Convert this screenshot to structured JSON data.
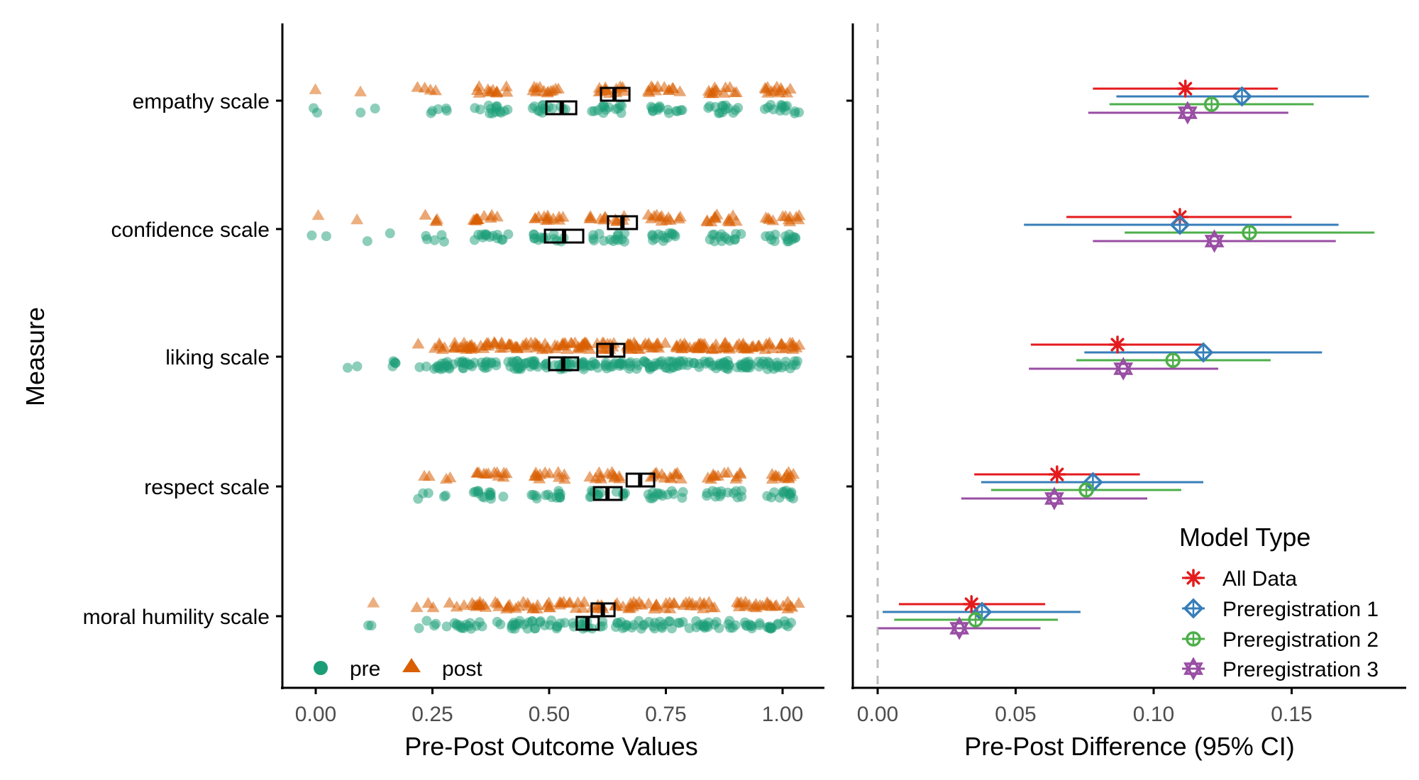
{
  "colors": {
    "pre": "#1b9e77",
    "post": "#d95f02",
    "all_data": "#e41a1c",
    "prereg1": "#377eb8",
    "prereg2": "#4daf4a",
    "prereg3": "#984ea3",
    "zero_line": "#bdbdbd"
  },
  "chart_data": [
    {
      "type": "scatter",
      "title": "",
      "xlabel": "Pre-Post Outcome Values",
      "ylabel": "Measure",
      "xlim": [
        -0.06,
        1.09
      ],
      "xticks": [
        "0.00",
        "0.25",
        "0.50",
        "0.75",
        "1.00"
      ],
      "xtick_values": [
        0,
        0.25,
        0.5,
        0.75,
        1.0
      ],
      "categories": [
        "empathy scale",
        "confidence scale",
        "liking scale",
        "respect scale",
        "moral humility scale"
      ],
      "legend": {
        "position": "bottom-left",
        "entries": [
          {
            "label": "pre",
            "shape": "circle"
          },
          {
            "label": "post",
            "shape": "triangle"
          }
        ]
      },
      "series": [
        {
          "name": "pre",
          "clusters": [
            [
              0.0,
              0.125,
              0.25,
              0.375,
              0.5,
              0.625,
              0.75,
              0.875,
              1.0
            ],
            [
              0.0,
              0.125,
              0.25,
              0.375,
              0.5,
              0.625,
              0.75,
              0.875,
              1.0
            ],
            [
              0.1,
              0.15,
              0.2,
              0.25,
              0.3,
              0.35,
              0.4,
              0.45,
              0.5,
              0.55,
              0.6,
              0.65,
              0.7,
              0.75,
              0.8,
              0.85,
              0.9,
              0.95,
              1.0
            ],
            [
              0.25,
              0.375,
              0.5,
              0.625,
              0.75,
              0.875,
              1.0
            ],
            [
              0.14,
              0.25,
              0.33,
              0.42,
              0.5,
              0.58,
              0.67,
              0.75,
              0.83,
              0.92,
              1.0
            ]
          ],
          "means": [
            0.527,
            0.532,
            0.53,
            0.625,
            0.582
          ],
          "ci_low": [
            0.494,
            0.491,
            0.5,
            0.596,
            0.559
          ],
          "ci_high": [
            0.558,
            0.573,
            0.562,
            0.655,
            0.606
          ]
        },
        {
          "name": "post",
          "clusters": [
            [
              0.0,
              0.125,
              0.25,
              0.375,
              0.5,
              0.625,
              0.75,
              0.875,
              1.0
            ],
            [
              0.0,
              0.125,
              0.25,
              0.375,
              0.5,
              0.625,
              0.75,
              0.875,
              1.0
            ],
            [
              0.25,
              0.3,
              0.35,
              0.4,
              0.45,
              0.5,
              0.55,
              0.6,
              0.65,
              0.7,
              0.75,
              0.8,
              0.85,
              0.9,
              0.95,
              1.0
            ],
            [
              0.25,
              0.375,
              0.5,
              0.625,
              0.75,
              0.875,
              1.0
            ],
            [
              0.14,
              0.25,
              0.33,
              0.42,
              0.5,
              0.58,
              0.67,
              0.75,
              0.83,
              0.92,
              1.0
            ]
          ],
          "means": [
            0.64,
            0.657,
            0.634,
            0.695,
            0.615
          ],
          "ci_low": [
            0.611,
            0.626,
            0.603,
            0.666,
            0.591
          ],
          "ci_high": [
            0.672,
            0.688,
            0.661,
            0.725,
            0.64
          ]
        }
      ]
    },
    {
      "type": "forest",
      "title": "",
      "xlabel": "Pre-Post Difference (95% CI)",
      "xlim": [
        -0.009,
        0.191
      ],
      "xticks": [
        "0.00",
        "0.05",
        "0.10",
        "0.15"
      ],
      "xtick_values": [
        0,
        0.05,
        0.1,
        0.15
      ],
      "reference_line": 0,
      "categories": [
        "empathy scale",
        "confidence scale",
        "liking scale",
        "respect scale",
        "moral humility scale"
      ],
      "legend": {
        "title": "Model Type",
        "position": "bottom-right"
      },
      "series": [
        {
          "name": "All Data",
          "shape": "asterisk",
          "estimate": [
            0.1115,
            0.1095,
            0.0869,
            0.065,
            0.034
          ],
          "low": [
            0.078,
            0.0684,
            0.0555,
            0.035,
            0.0077
          ],
          "high": [
            0.145,
            0.15,
            0.118,
            0.095,
            0.0607
          ]
        },
        {
          "name": "Preregistration 1",
          "shape": "diamond-plus",
          "estimate": [
            0.132,
            0.1095,
            0.118,
            0.078,
            0.0378
          ],
          "low": [
            0.0865,
            0.053,
            0.0749,
            0.0375,
            0.0018
          ],
          "high": [
            0.178,
            0.167,
            0.161,
            0.118,
            0.0735
          ]
        },
        {
          "name": "Preregistration 2",
          "shape": "circle-plus",
          "estimate": [
            0.121,
            0.1347,
            0.107,
            0.0756,
            0.0355
          ],
          "low": [
            0.084,
            0.0895,
            0.072,
            0.0411,
            0.006
          ],
          "high": [
            0.158,
            0.18,
            0.1424,
            0.11,
            0.0653
          ]
        },
        {
          "name": "Preregistration 3",
          "shape": "star-of-david",
          "estimate": [
            0.1123,
            0.122,
            0.089,
            0.064,
            0.0296
          ],
          "low": [
            0.0763,
            0.078,
            0.0548,
            0.0303,
            0.0003
          ],
          "high": [
            0.1488,
            0.166,
            0.1234,
            0.0977,
            0.059
          ]
        }
      ]
    }
  ]
}
